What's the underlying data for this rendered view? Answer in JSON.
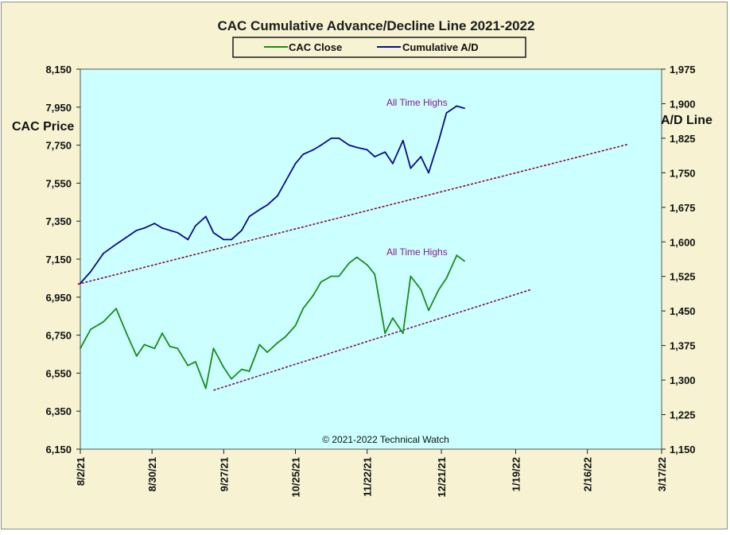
{
  "chart_data": {
    "type": "line",
    "title": "CAC Cumulative  Advance/Decline  Line 2021-2022",
    "ylabel_left": "CAC Price",
    "ylabel_right": "A/D Line",
    "credit": "© 2021-2022  Technical  Watch",
    "annotations": [
      "All Time Highs",
      "All Time Highs"
    ],
    "x_dates": [
      "8/2/21",
      "8/30/21",
      "9/27/21",
      "10/25/21",
      "11/22/21",
      "12/21/21",
      "1/19/22",
      "2/16/22",
      "3/17/22"
    ],
    "x_range": [
      "2021-08-02",
      "2022-03-17"
    ],
    "y_left": {
      "range": [
        6150,
        8150
      ],
      "ticks": [
        "8,150",
        "7,950",
        "7,750",
        "7,550",
        "7,350",
        "7,150",
        "6,950",
        "6,750",
        "6,550",
        "6,350",
        "6,150"
      ]
    },
    "y_right": {
      "range": [
        1150,
        1975
      ],
      "ticks": [
        "1,975",
        "1,900",
        "1,825",
        "1,750",
        "1,675",
        "1,600",
        "1,525",
        "1,450",
        "1,375",
        "1,300",
        "1,225",
        "1,150"
      ]
    },
    "plot_background": "#ccffff",
    "grid": false,
    "legend_position": "top-center",
    "series": [
      {
        "name": "CAC Close",
        "axis": "left",
        "color": "#1a8c1a",
        "x": [
          "2021-08-02",
          "2021-08-06",
          "2021-08-11",
          "2021-08-16",
          "2021-08-20",
          "2021-08-24",
          "2021-08-27",
          "2021-08-31",
          "2021-09-03",
          "2021-09-06",
          "2021-09-09",
          "2021-09-13",
          "2021-09-16",
          "2021-09-20",
          "2021-09-23",
          "2021-09-27",
          "2021-09-30",
          "2021-10-04",
          "2021-10-07",
          "2021-10-11",
          "2021-10-14",
          "2021-10-18",
          "2021-10-21",
          "2021-10-25",
          "2021-10-28",
          "2021-11-01",
          "2021-11-04",
          "2021-11-08",
          "2021-11-11",
          "2021-11-15",
          "2021-11-18",
          "2021-11-22",
          "2021-11-25",
          "2021-11-29",
          "2021-12-02",
          "2021-12-06",
          "2021-12-09",
          "2021-12-13",
          "2021-12-16",
          "2021-12-20",
          "2021-12-23",
          "2021-12-27",
          "2021-12-30"
        ],
        "values": [
          6680,
          6780,
          6820,
          6890,
          6760,
          6640,
          6700,
          6680,
          6760,
          6690,
          6680,
          6590,
          6610,
          6470,
          6680,
          6580,
          6520,
          6570,
          6560,
          6700,
          6660,
          6710,
          6740,
          6800,
          6890,
          6960,
          7030,
          7060,
          7060,
          7130,
          7160,
          7120,
          7070,
          6760,
          6840,
          6760,
          7060,
          6990,
          6880,
          6990,
          7050,
          7170,
          7140
        ]
      },
      {
        "name": "Cumulative A/D",
        "axis": "right",
        "color": "#0b0b8a",
        "x": [
          "2021-08-02",
          "2021-08-06",
          "2021-08-11",
          "2021-08-16",
          "2021-08-20",
          "2021-08-24",
          "2021-08-27",
          "2021-08-31",
          "2021-09-03",
          "2021-09-06",
          "2021-09-09",
          "2021-09-13",
          "2021-09-16",
          "2021-09-20",
          "2021-09-23",
          "2021-09-27",
          "2021-09-30",
          "2021-10-04",
          "2021-10-07",
          "2021-10-11",
          "2021-10-14",
          "2021-10-18",
          "2021-10-21",
          "2021-10-25",
          "2021-10-28",
          "2021-11-01",
          "2021-11-04",
          "2021-11-08",
          "2021-11-11",
          "2021-11-15",
          "2021-11-18",
          "2021-11-22",
          "2021-11-25",
          "2021-11-29",
          "2021-12-02",
          "2021-12-06",
          "2021-12-09",
          "2021-12-13",
          "2021-12-16",
          "2021-12-20",
          "2021-12-23",
          "2021-12-27",
          "2021-12-30"
        ],
        "values": [
          1510,
          1535,
          1575,
          1595,
          1610,
          1625,
          1630,
          1640,
          1630,
          1625,
          1620,
          1605,
          1635,
          1655,
          1620,
          1605,
          1605,
          1625,
          1655,
          1670,
          1680,
          1700,
          1730,
          1770,
          1790,
          1800,
          1810,
          1825,
          1825,
          1810,
          1805,
          1800,
          1785,
          1795,
          1770,
          1820,
          1760,
          1785,
          1750,
          1820,
          1880,
          1895,
          1890
        ]
      }
    ],
    "trendlines": [
      {
        "color": "#8b0a33",
        "from": {
          "x": "2021-08-01",
          "value": 1508
        },
        "to": {
          "x": "2022-03-04",
          "value": 1812
        }
      },
      {
        "color": "#7a1066",
        "from": {
          "x": "2021-09-23",
          "value": 6460
        },
        "to": {
          "x": "2022-01-25",
          "value": 6990
        }
      }
    ]
  }
}
